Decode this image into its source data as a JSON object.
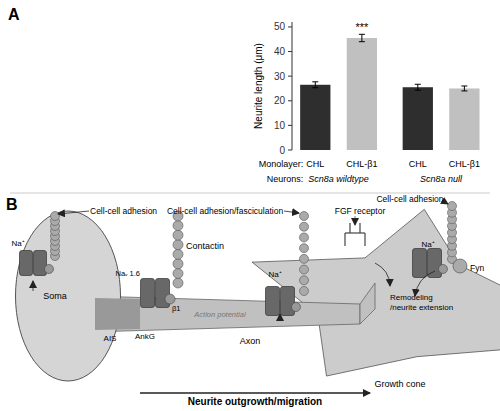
{
  "chart_data": [
    {
      "type": "bar",
      "panel_label": "A",
      "categories": [
        "CHL",
        "CHL-β1",
        "CHL",
        "CHL-β1"
      ],
      "category_title": "Monolayer:",
      "groups": [
        "Scn8a wildtype",
        "Scn8a null"
      ],
      "group_title": "Neurons:",
      "values": [
        26.5,
        45.5,
        25.5,
        25.0
      ],
      "errors": [
        1.2,
        1.5,
        1.2,
        1.0
      ],
      "colors": [
        "#2e2e2e",
        "#c0c0c0",
        "#2e2e2e",
        "#c0c0c0"
      ],
      "ylabel": "Neurite length (μm)",
      "ylim": [
        0,
        52
      ],
      "yticks": [
        0,
        10,
        20,
        30,
        40,
        50
      ],
      "grid": false,
      "annotations": [
        {
          "text": "***",
          "at": 1
        }
      ]
    },
    {
      "type": "diagram",
      "panel_label": "B",
      "labels": [
        "Soma",
        "Action potential",
        "AIS",
        "AnkG",
        "Axon",
        "Growth cone",
        "Na⁺",
        "Cell-cell adhesion",
        "Naᵥ 1.6",
        "β1",
        "Contactin",
        "Na⁺",
        "Cell-cell adhesion/fasciculation",
        "FGF receptor",
        "Na⁺",
        "Cell-cell adhesion",
        "Fyn",
        "Remodeling\n/neurite extension",
        "Neurite outgrowth/migration"
      ]
    }
  ]
}
